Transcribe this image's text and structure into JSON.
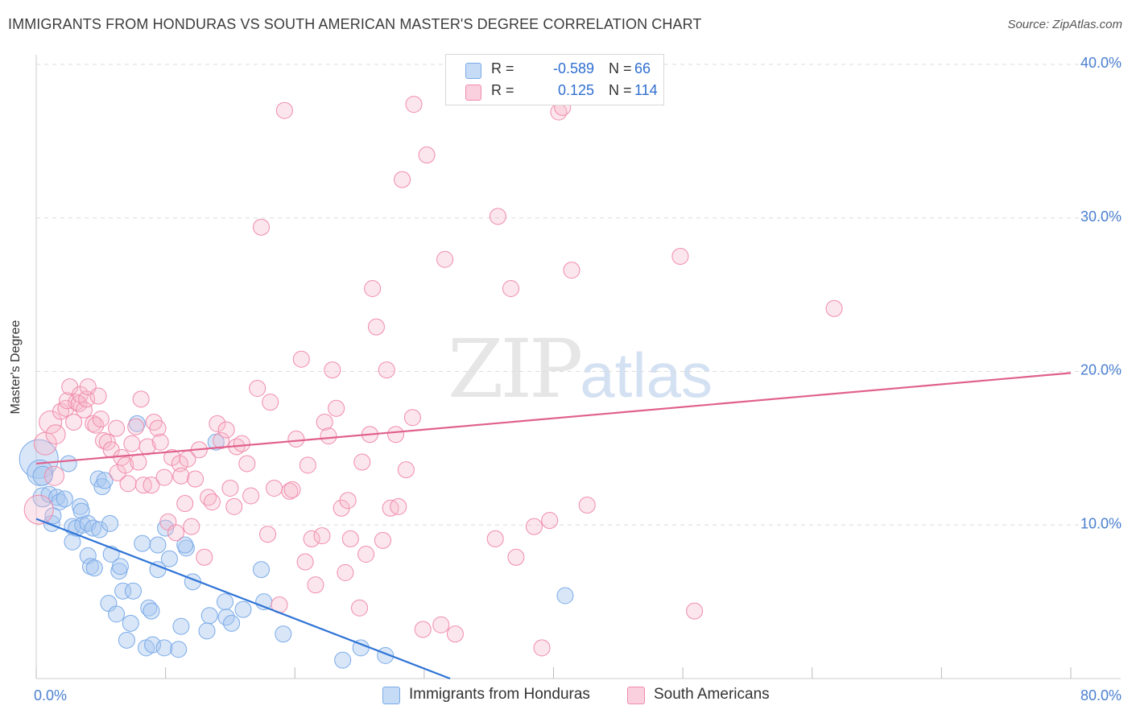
{
  "title": "IMMIGRANTS FROM HONDURAS VS SOUTH AMERICAN MASTER'S DEGREE CORRELATION CHART",
  "source": "Source: ZipAtlas.com",
  "watermark": {
    "zip": "ZIP",
    "atlas": "atlas"
  },
  "legend": {
    "rows": [
      {
        "r_label": "R =",
        "r_value": "-0.589",
        "n_label": "N =",
        "n_value": "66",
        "color": "#a9c8f0"
      },
      {
        "r_label": "R =",
        "r_value": "0.125",
        "n_label": "N =",
        "n_value": "114",
        "color": "#f7b8cc"
      }
    ]
  },
  "bottom_legend": [
    {
      "label": "Immigrants from Honduras",
      "color": "#a9c8f0"
    },
    {
      "label": "South Americans",
      "color": "#f7b8cc"
    }
  ],
  "chart_data": {
    "type": "scatter",
    "title": "IMMIGRANTS FROM HONDURAS VS SOUTH AMERICAN MASTER'S DEGREE CORRELATION CHART",
    "xlabel": "",
    "ylabel": "Master's Degree",
    "xlim": [
      0,
      80
    ],
    "ylim": [
      0,
      40
    ],
    "x_tick_labels": [
      {
        "value": 0,
        "label": "0.0%"
      },
      {
        "value": 80,
        "label": "80.0%"
      }
    ],
    "y_tick_labels": [
      {
        "value": 10,
        "label": "10.0%"
      },
      {
        "value": 20,
        "label": "20.0%"
      },
      {
        "value": 30,
        "label": "30.0%"
      },
      {
        "value": 40,
        "label": "40.0%"
      }
    ],
    "grid": "horizontal dashed",
    "series": [
      {
        "name": "Immigrants from Honduras",
        "color": "#7aaae8",
        "stats": {
          "R": -0.589,
          "N": 66
        },
        "trend": [
          [
            0,
            10.4
          ],
          [
            32,
            0
          ]
        ],
        "points": [
          [
            0.2,
            14.3,
            24
          ],
          [
            0.3,
            13.4,
            16
          ],
          [
            0.5,
            11.8,
            12
          ],
          [
            0.5,
            13.2,
            12
          ],
          [
            1.0,
            12.0,
            10
          ],
          [
            1.2,
            10.1,
            10
          ],
          [
            1.3,
            10.6,
            10
          ],
          [
            1.6,
            11.8,
            10
          ],
          [
            1.8,
            11.5,
            10
          ],
          [
            2.2,
            11.7,
            10
          ],
          [
            2.5,
            14.0,
            10
          ],
          [
            2.8,
            9.9,
            10
          ],
          [
            2.8,
            8.9,
            10
          ],
          [
            3.1,
            9.8,
            10
          ],
          [
            3.4,
            11.2,
            10
          ],
          [
            3.5,
            10.9,
            10
          ],
          [
            3.6,
            10.0,
            10
          ],
          [
            4.0,
            10.1,
            10
          ],
          [
            4.0,
            8.0,
            10
          ],
          [
            4.2,
            7.3,
            10
          ],
          [
            4.4,
            9.8,
            10
          ],
          [
            4.5,
            7.2,
            10
          ],
          [
            4.8,
            13.0,
            10
          ],
          [
            4.9,
            9.7,
            10
          ],
          [
            5.1,
            12.5,
            10
          ],
          [
            5.3,
            12.9,
            10
          ],
          [
            5.7,
            10.1,
            10
          ],
          [
            5.8,
            8.1,
            10
          ],
          [
            5.6,
            4.9,
            10
          ],
          [
            6.2,
            4.2,
            10
          ],
          [
            6.4,
            7.0,
            10
          ],
          [
            6.5,
            7.3,
            10
          ],
          [
            6.7,
            5.7,
            10
          ],
          [
            7.0,
            2.5,
            10
          ],
          [
            7.3,
            3.6,
            10
          ],
          [
            7.5,
            5.7,
            10
          ],
          [
            7.8,
            16.6,
            10
          ],
          [
            8.2,
            8.8,
            10
          ],
          [
            8.5,
            2.0,
            10
          ],
          [
            8.7,
            4.6,
            10
          ],
          [
            8.9,
            4.4,
            10
          ],
          [
            9.0,
            2.2,
            10
          ],
          [
            9.4,
            8.7,
            10
          ],
          [
            9.4,
            7.1,
            10
          ],
          [
            9.9,
            2.0,
            10
          ],
          [
            10.0,
            9.8,
            10
          ],
          [
            10.3,
            7.8,
            10
          ],
          [
            11.0,
            1.9,
            10
          ],
          [
            11.2,
            3.4,
            10
          ],
          [
            11.6,
            8.5,
            10
          ],
          [
            11.5,
            8.7,
            10
          ],
          [
            12.1,
            6.3,
            10
          ],
          [
            13.2,
            3.1,
            10
          ],
          [
            13.4,
            4.1,
            10
          ],
          [
            13.9,
            15.4,
            10
          ],
          [
            14.6,
            5.0,
            10
          ],
          [
            14.7,
            4.0,
            10
          ],
          [
            15.1,
            3.6,
            10
          ],
          [
            16.0,
            4.5,
            10
          ],
          [
            17.4,
            7.1,
            10
          ],
          [
            17.6,
            5.0,
            10
          ],
          [
            19.1,
            2.9,
            10
          ],
          [
            23.7,
            1.2,
            10
          ],
          [
            25.1,
            2.0,
            10
          ],
          [
            27.0,
            1.5,
            10
          ],
          [
            40.9,
            5.4,
            10
          ]
        ]
      },
      {
        "name": "South Americans",
        "color": "#f08bab",
        "stats": {
          "R": 0.125,
          "N": 114
        },
        "trend": [
          [
            0,
            14.0
          ],
          [
            80,
            19.9
          ]
        ],
        "points": [
          [
            0.2,
            11.0,
            18
          ],
          [
            0.7,
            15.3,
            14
          ],
          [
            1.1,
            16.7,
            14
          ],
          [
            1.5,
            15.9,
            12
          ],
          [
            1.4,
            13.2,
            12
          ],
          [
            1.9,
            17.4,
            10
          ],
          [
            2.3,
            17.6,
            10
          ],
          [
            2.4,
            18.1,
            10
          ],
          [
            2.6,
            19.0,
            10
          ],
          [
            2.9,
            16.7,
            10
          ],
          [
            3.1,
            18.0,
            10
          ],
          [
            3.3,
            17.9,
            10
          ],
          [
            3.4,
            18.5,
            10
          ],
          [
            3.7,
            17.5,
            10
          ],
          [
            3.9,
            18.2,
            10
          ],
          [
            4.0,
            19.0,
            10
          ],
          [
            4.4,
            16.6,
            10
          ],
          [
            4.6,
            16.5,
            10
          ],
          [
            4.8,
            18.4,
            10
          ],
          [
            5.0,
            16.9,
            10
          ],
          [
            5.2,
            15.5,
            10
          ],
          [
            5.5,
            15.4,
            10
          ],
          [
            5.8,
            14.9,
            10
          ],
          [
            6.2,
            16.3,
            10
          ],
          [
            6.3,
            13.4,
            10
          ],
          [
            6.6,
            14.4,
            10
          ],
          [
            6.9,
            13.9,
            10
          ],
          [
            7.1,
            12.7,
            10
          ],
          [
            7.4,
            15.3,
            10
          ],
          [
            7.7,
            16.4,
            10
          ],
          [
            7.9,
            14.1,
            10
          ],
          [
            8.1,
            18.2,
            10
          ],
          [
            8.3,
            12.6,
            10
          ],
          [
            8.6,
            15.1,
            10
          ],
          [
            8.9,
            12.6,
            10
          ],
          [
            9.1,
            16.7,
            10
          ],
          [
            9.4,
            16.3,
            10
          ],
          [
            9.6,
            15.4,
            10
          ],
          [
            9.9,
            13.1,
            10
          ],
          [
            10.2,
            10.2,
            10
          ],
          [
            10.5,
            14.4,
            10
          ],
          [
            10.8,
            9.5,
            10
          ],
          [
            11.1,
            14.0,
            10
          ],
          [
            11.2,
            13.2,
            10
          ],
          [
            11.5,
            11.4,
            10
          ],
          [
            11.7,
            14.3,
            10
          ],
          [
            12.0,
            9.9,
            10
          ],
          [
            12.3,
            13.0,
            10
          ],
          [
            12.6,
            14.9,
            10
          ],
          [
            13.0,
            7.9,
            10
          ],
          [
            13.3,
            11.8,
            10
          ],
          [
            13.6,
            11.5,
            10
          ],
          [
            14.0,
            16.6,
            10
          ],
          [
            14.3,
            15.5,
            10
          ],
          [
            14.7,
            16.2,
            10
          ],
          [
            15.0,
            12.4,
            10
          ],
          [
            15.3,
            11.2,
            10
          ],
          [
            15.5,
            15.1,
            10
          ],
          [
            15.9,
            15.3,
            10
          ],
          [
            16.3,
            14.0,
            10
          ],
          [
            16.6,
            11.9,
            10
          ],
          [
            17.1,
            18.9,
            10
          ],
          [
            17.4,
            29.4,
            10
          ],
          [
            17.9,
            9.4,
            10
          ],
          [
            18.1,
            18.0,
            10
          ],
          [
            18.4,
            12.4,
            10
          ],
          [
            18.8,
            4.8,
            10
          ],
          [
            19.2,
            37.0,
            10
          ],
          [
            19.6,
            12.2,
            10
          ],
          [
            19.8,
            12.3,
            10
          ],
          [
            20.1,
            15.6,
            10
          ],
          [
            20.5,
            20.8,
            10
          ],
          [
            20.8,
            7.6,
            10
          ],
          [
            21.0,
            13.9,
            10
          ],
          [
            21.3,
            9.1,
            10
          ],
          [
            21.6,
            6.1,
            10
          ],
          [
            22.1,
            9.3,
            10
          ],
          [
            22.3,
            16.7,
            10
          ],
          [
            22.6,
            15.8,
            10
          ],
          [
            22.9,
            20.1,
            10
          ],
          [
            23.2,
            17.6,
            10
          ],
          [
            23.6,
            11.1,
            10
          ],
          [
            23.9,
            6.9,
            10
          ],
          [
            24.1,
            11.6,
            10
          ],
          [
            24.3,
            9.1,
            10
          ],
          [
            25.0,
            4.6,
            10
          ],
          [
            25.2,
            14.1,
            10
          ],
          [
            25.5,
            8.1,
            10
          ],
          [
            25.8,
            15.9,
            10
          ],
          [
            26.0,
            25.4,
            10
          ],
          [
            26.3,
            22.9,
            10
          ],
          [
            26.8,
            9.0,
            10
          ],
          [
            27.1,
            20.1,
            10
          ],
          [
            27.4,
            11.1,
            10
          ],
          [
            27.8,
            15.9,
            10
          ],
          [
            28.0,
            11.2,
            10
          ],
          [
            28.3,
            32.5,
            10
          ],
          [
            28.6,
            13.6,
            10
          ],
          [
            29.1,
            17.0,
            10
          ],
          [
            29.2,
            37.4,
            10
          ],
          [
            29.9,
            3.2,
            10
          ],
          [
            30.2,
            34.1,
            10
          ],
          [
            31.3,
            3.5,
            10
          ],
          [
            31.6,
            27.3,
            10
          ],
          [
            32.4,
            2.9,
            10
          ],
          [
            35.5,
            9.1,
            10
          ],
          [
            35.7,
            30.1,
            10
          ],
          [
            36.7,
            25.4,
            10
          ],
          [
            37.1,
            7.9,
            10
          ],
          [
            38.5,
            9.9,
            10
          ],
          [
            39.1,
            2.0,
            10
          ],
          [
            39.7,
            10.3,
            10
          ],
          [
            40.4,
            36.9,
            10
          ],
          [
            40.7,
            37.2,
            10
          ],
          [
            41.4,
            26.6,
            10
          ],
          [
            42.6,
            11.3,
            10
          ],
          [
            49.8,
            27.5,
            10
          ],
          [
            50.9,
            4.4,
            10
          ],
          [
            61.7,
            24.1,
            10
          ]
        ]
      }
    ]
  }
}
